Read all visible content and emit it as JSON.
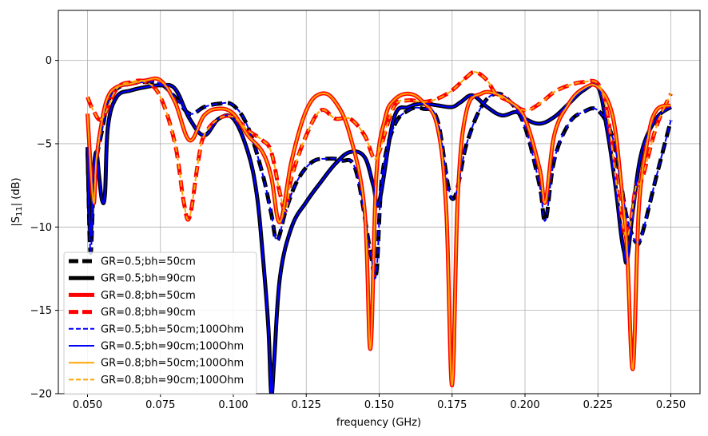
{
  "chart_data": {
    "type": "line",
    "xlabel": "frequency (GHz)",
    "ylabel": "|S11| (dB)",
    "xlim": [
      0.04,
      0.26
    ],
    "ylim": [
      -20,
      3
    ],
    "xticks": [
      "0.050",
      "0.075",
      "0.100",
      "0.125",
      "0.150",
      "0.175",
      "0.200",
      "0.225",
      "0.250"
    ],
    "yticks": [
      "0",
      "−5",
      "−10",
      "−15",
      "−20"
    ],
    "grid": true,
    "legend_position": "lower-left",
    "series": [
      {
        "name": "GR=0.5;bh=50cm",
        "color": "#000000",
        "dash": "dashed",
        "width": 5,
        "x": [
          0.05,
          0.051,
          0.052,
          0.053,
          0.055,
          0.057,
          0.06,
          0.065,
          0.07,
          0.075,
          0.08,
          0.085,
          0.09,
          0.095,
          0.1,
          0.105,
          0.11,
          0.113,
          0.115,
          0.118,
          0.122,
          0.127,
          0.132,
          0.137,
          0.142,
          0.147,
          0.149,
          0.151,
          0.155,
          0.16,
          0.165,
          0.17,
          0.175,
          0.18,
          0.185,
          0.19,
          0.195,
          0.2,
          0.205,
          0.207,
          0.21,
          0.215,
          0.22,
          0.225,
          0.23,
          0.233,
          0.235,
          0.238,
          0.24,
          0.245,
          0.25
        ],
        "y": [
          -5.2,
          -11.5,
          -8.0,
          -6.0,
          -4.2,
          -2.5,
          -1.7,
          -1.4,
          -1.3,
          -1.4,
          -2.2,
          -3.2,
          -2.8,
          -2.6,
          -2.7,
          -4.0,
          -6.8,
          -9.2,
          -10.8,
          -9.0,
          -7.2,
          -6.1,
          -5.9,
          -6.0,
          -6.6,
          -11.5,
          -12.8,
          -7.0,
          -4.0,
          -3.0,
          -2.9,
          -3.6,
          -8.3,
          -5.0,
          -2.8,
          -2.0,
          -2.5,
          -4.0,
          -7.5,
          -9.6,
          -6.0,
          -3.8,
          -3.1,
          -3.0,
          -4.6,
          -7.5,
          -9.5,
          -10.9,
          -10.5,
          -7.0,
          -3.6
        ]
      },
      {
        "name": "GR=0.5;bh=90cm",
        "color": "#000000",
        "dash": "solid",
        "width": 5,
        "x": [
          0.05,
          0.051,
          0.052,
          0.053,
          0.054,
          0.055,
          0.056,
          0.057,
          0.06,
          0.065,
          0.07,
          0.075,
          0.08,
          0.085,
          0.09,
          0.095,
          0.1,
          0.105,
          0.108,
          0.11,
          0.112,
          0.113,
          0.114,
          0.116,
          0.12,
          0.125,
          0.13,
          0.135,
          0.14,
          0.145,
          0.148,
          0.15,
          0.155,
          0.16,
          0.165,
          0.17,
          0.175,
          0.178,
          0.182,
          0.187,
          0.192,
          0.197,
          0.2,
          0.205,
          0.21,
          0.215,
          0.22,
          0.225,
          0.228,
          0.231,
          0.233,
          0.234,
          0.235,
          0.237,
          0.24,
          0.245,
          0.25
        ],
        "y": [
          -5.5,
          -10.5,
          -7.0,
          -5.5,
          -7.0,
          -8.4,
          -8.0,
          -4.0,
          -2.2,
          -1.8,
          -1.6,
          -1.5,
          -1.7,
          -3.5,
          -4.5,
          -3.5,
          -3.5,
          -5.5,
          -8.0,
          -11.5,
          -16.0,
          -20.0,
          -18.0,
          -13.0,
          -10.0,
          -8.5,
          -7.3,
          -6.2,
          -5.5,
          -5.8,
          -7.5,
          -8.5,
          -3.5,
          -2.8,
          -2.6,
          -2.7,
          -2.8,
          -2.5,
          -2.1,
          -2.8,
          -3.3,
          -3.1,
          -3.5,
          -3.8,
          -3.4,
          -2.6,
          -1.8,
          -1.6,
          -4.0,
          -7.5,
          -10.5,
          -11.5,
          -12.0,
          -9.0,
          -5.5,
          -3.5,
          -2.8
        ]
      },
      {
        "name": "GR=0.8;bh=50cm",
        "color": "#ff0000",
        "dash": "solid",
        "width": 5,
        "x": [
          0.05,
          0.052,
          0.053,
          0.055,
          0.057,
          0.06,
          0.065,
          0.07,
          0.075,
          0.08,
          0.085,
          0.09,
          0.095,
          0.1,
          0.105,
          0.11,
          0.113,
          0.116,
          0.12,
          0.125,
          0.13,
          0.135,
          0.14,
          0.145,
          0.147,
          0.149,
          0.152,
          0.155,
          0.16,
          0.165,
          0.17,
          0.173,
          0.175,
          0.177,
          0.18,
          0.185,
          0.19,
          0.195,
          0.2,
          0.205,
          0.207,
          0.21,
          0.215,
          0.22,
          0.225,
          0.23,
          0.233,
          0.235,
          0.237,
          0.239,
          0.242,
          0.245,
          0.25
        ],
        "y": [
          -3.2,
          -8.5,
          -6.0,
          -3.6,
          -2.2,
          -1.6,
          -1.4,
          -1.2,
          -1.2,
          -2.5,
          -4.8,
          -3.3,
          -2.9,
          -3.2,
          -4.5,
          -5.5,
          -7.0,
          -9.7,
          -6.0,
          -3.0,
          -2.0,
          -2.5,
          -4.5,
          -9.0,
          -17.3,
          -7.0,
          -3.5,
          -2.4,
          -2.0,
          -2.5,
          -4.0,
          -9.0,
          -19.5,
          -8.0,
          -3.0,
          -2.0,
          -2.0,
          -2.5,
          -3.5,
          -6.5,
          -8.5,
          -4.5,
          -2.6,
          -1.7,
          -1.6,
          -3.3,
          -7.5,
          -11.5,
          -18.5,
          -9.0,
          -4.8,
          -3.0,
          -2.7
        ]
      },
      {
        "name": "GR=0.8;bh=90cm",
        "color": "#ff0000",
        "dash": "dashed",
        "width": 5,
        "x": [
          0.05,
          0.052,
          0.055,
          0.06,
          0.065,
          0.07,
          0.075,
          0.08,
          0.083,
          0.085,
          0.088,
          0.09,
          0.095,
          0.1,
          0.105,
          0.11,
          0.113,
          0.116,
          0.118,
          0.12,
          0.125,
          0.13,
          0.135,
          0.14,
          0.145,
          0.148,
          0.15,
          0.155,
          0.16,
          0.165,
          0.17,
          0.175,
          0.18,
          0.183,
          0.187,
          0.19,
          0.195,
          0.2,
          0.205,
          0.21,
          0.215,
          0.22,
          0.225,
          0.228,
          0.23,
          0.232,
          0.235,
          0.238,
          0.24,
          0.245,
          0.25
        ],
        "y": [
          -2.2,
          -3.0,
          -3.5,
          -1.7,
          -1.3,
          -1.3,
          -2.2,
          -5.0,
          -8.5,
          -9.4,
          -6.0,
          -4.5,
          -3.5,
          -3.4,
          -4.2,
          -4.8,
          -5.5,
          -8.0,
          -9.0,
          -7.0,
          -4.5,
          -3.0,
          -3.5,
          -3.5,
          -4.5,
          -5.8,
          -5.5,
          -2.8,
          -2.4,
          -2.5,
          -2.3,
          -1.8,
          -1.0,
          -0.7,
          -1.2,
          -2.0,
          -2.5,
          -3.0,
          -2.6,
          -1.9,
          -1.5,
          -1.3,
          -1.4,
          -3.0,
          -5.5,
          -8.2,
          -10.6,
          -7.6,
          -7.2,
          -4.0,
          -2.0
        ]
      },
      {
        "name": "GR=0.5;bh=50cm;100Ohm",
        "color": "#0000ff",
        "dash": "dashed",
        "width": 2,
        "x": [
          0.05,
          0.051,
          0.052,
          0.053,
          0.055,
          0.057,
          0.06,
          0.065,
          0.07,
          0.075,
          0.08,
          0.085,
          0.09,
          0.095,
          0.1,
          0.105,
          0.11,
          0.113,
          0.115,
          0.118,
          0.122,
          0.127,
          0.132,
          0.137,
          0.142,
          0.147,
          0.149,
          0.151,
          0.155,
          0.16,
          0.165,
          0.17,
          0.175,
          0.18,
          0.185,
          0.19,
          0.195,
          0.2,
          0.205,
          0.207,
          0.21,
          0.215,
          0.22,
          0.225,
          0.23,
          0.233,
          0.235,
          0.238,
          0.24,
          0.245,
          0.25
        ],
        "y": [
          -5.2,
          -11.5,
          -8.0,
          -6.0,
          -4.2,
          -2.5,
          -1.7,
          -1.4,
          -1.3,
          -1.4,
          -2.2,
          -3.2,
          -2.8,
          -2.6,
          -2.7,
          -4.0,
          -6.8,
          -9.2,
          -10.8,
          -9.0,
          -7.2,
          -6.1,
          -5.9,
          -6.0,
          -6.6,
          -11.5,
          -12.8,
          -7.0,
          -4.0,
          -3.0,
          -2.9,
          -3.6,
          -8.3,
          -5.0,
          -2.8,
          -2.0,
          -2.5,
          -4.0,
          -7.5,
          -9.6,
          -6.0,
          -3.8,
          -3.1,
          -3.0,
          -4.6,
          -7.5,
          -9.5,
          -10.9,
          -10.5,
          -7.0,
          -3.6
        ]
      },
      {
        "name": "GR=0.5;bh=90cm;100Ohm",
        "color": "#0000ff",
        "dash": "solid",
        "width": 2,
        "x": [
          0.05,
          0.051,
          0.052,
          0.053,
          0.054,
          0.055,
          0.056,
          0.057,
          0.06,
          0.065,
          0.07,
          0.075,
          0.08,
          0.085,
          0.09,
          0.095,
          0.1,
          0.105,
          0.108,
          0.11,
          0.112,
          0.113,
          0.114,
          0.116,
          0.12,
          0.125,
          0.13,
          0.135,
          0.14,
          0.145,
          0.148,
          0.15,
          0.155,
          0.16,
          0.165,
          0.17,
          0.175,
          0.178,
          0.182,
          0.187,
          0.192,
          0.197,
          0.2,
          0.205,
          0.21,
          0.215,
          0.22,
          0.225,
          0.228,
          0.231,
          0.233,
          0.234,
          0.235,
          0.237,
          0.24,
          0.245,
          0.25
        ],
        "y": [
          -5.5,
          -10.5,
          -7.0,
          -5.5,
          -7.0,
          -8.4,
          -8.0,
          -4.0,
          -2.2,
          -1.8,
          -1.6,
          -1.5,
          -1.7,
          -3.5,
          -4.5,
          -3.5,
          -3.5,
          -5.5,
          -8.0,
          -11.5,
          -16.0,
          -20.0,
          -18.0,
          -13.0,
          -10.0,
          -8.5,
          -7.3,
          -6.2,
          -5.5,
          -5.8,
          -7.5,
          -8.5,
          -3.5,
          -2.8,
          -2.6,
          -2.7,
          -2.8,
          -2.5,
          -2.1,
          -2.8,
          -3.3,
          -3.1,
          -3.5,
          -3.8,
          -3.4,
          -2.6,
          -1.8,
          -1.6,
          -4.0,
          -7.5,
          -10.5,
          -11.5,
          -12.0,
          -9.0,
          -5.5,
          -3.5,
          -2.8
        ]
      },
      {
        "name": "GR=0.8;bh=50cm;100Ohm",
        "color": "#ffa500",
        "dash": "solid",
        "width": 2,
        "x": [
          0.05,
          0.052,
          0.053,
          0.055,
          0.057,
          0.06,
          0.065,
          0.07,
          0.075,
          0.08,
          0.085,
          0.09,
          0.095,
          0.1,
          0.105,
          0.11,
          0.113,
          0.116,
          0.12,
          0.125,
          0.13,
          0.135,
          0.14,
          0.145,
          0.147,
          0.149,
          0.152,
          0.155,
          0.16,
          0.165,
          0.17,
          0.173,
          0.175,
          0.177,
          0.18,
          0.185,
          0.19,
          0.195,
          0.2,
          0.205,
          0.207,
          0.21,
          0.215,
          0.22,
          0.225,
          0.23,
          0.233,
          0.235,
          0.237,
          0.239,
          0.242,
          0.245,
          0.25
        ],
        "y": [
          -3.2,
          -8.5,
          -6.0,
          -3.6,
          -2.2,
          -1.6,
          -1.4,
          -1.2,
          -1.2,
          -2.5,
          -4.8,
          -3.3,
          -2.9,
          -3.2,
          -4.5,
          -5.5,
          -7.0,
          -9.7,
          -6.0,
          -3.0,
          -2.0,
          -2.5,
          -4.5,
          -9.0,
          -17.3,
          -7.0,
          -3.5,
          -2.4,
          -2.0,
          -2.5,
          -4.0,
          -9.0,
          -19.5,
          -8.0,
          -3.0,
          -2.0,
          -2.0,
          -2.5,
          -3.5,
          -6.5,
          -8.5,
          -4.5,
          -2.6,
          -1.7,
          -1.6,
          -3.3,
          -7.5,
          -11.5,
          -18.5,
          -9.0,
          -4.8,
          -3.0,
          -2.7
        ]
      },
      {
        "name": "GR=0.8;bh=90cm;100Ohm",
        "color": "#ffa500",
        "dash": "dashed",
        "width": 2,
        "x": [
          0.05,
          0.052,
          0.055,
          0.06,
          0.065,
          0.07,
          0.075,
          0.08,
          0.083,
          0.085,
          0.088,
          0.09,
          0.095,
          0.1,
          0.105,
          0.11,
          0.113,
          0.116,
          0.118,
          0.12,
          0.125,
          0.13,
          0.135,
          0.14,
          0.145,
          0.148,
          0.15,
          0.155,
          0.16,
          0.165,
          0.17,
          0.175,
          0.18,
          0.183,
          0.187,
          0.19,
          0.195,
          0.2,
          0.205,
          0.21,
          0.215,
          0.22,
          0.225,
          0.228,
          0.23,
          0.232,
          0.235,
          0.238,
          0.24,
          0.245,
          0.25
        ],
        "y": [
          -2.2,
          -3.0,
          -3.5,
          -1.7,
          -1.3,
          -1.3,
          -2.2,
          -5.0,
          -8.5,
          -9.4,
          -6.0,
          -4.5,
          -3.5,
          -3.4,
          -4.2,
          -4.8,
          -5.5,
          -8.0,
          -9.0,
          -7.0,
          -4.5,
          -3.0,
          -3.5,
          -3.5,
          -4.5,
          -5.8,
          -5.5,
          -2.8,
          -2.4,
          -2.5,
          -2.3,
          -1.8,
          -1.0,
          -0.7,
          -1.2,
          -2.0,
          -2.5,
          -3.0,
          -2.6,
          -1.9,
          -1.5,
          -1.3,
          -1.4,
          -3.0,
          -5.5,
          -8.2,
          -10.6,
          -7.6,
          -7.2,
          -4.0,
          -2.0
        ]
      }
    ]
  }
}
